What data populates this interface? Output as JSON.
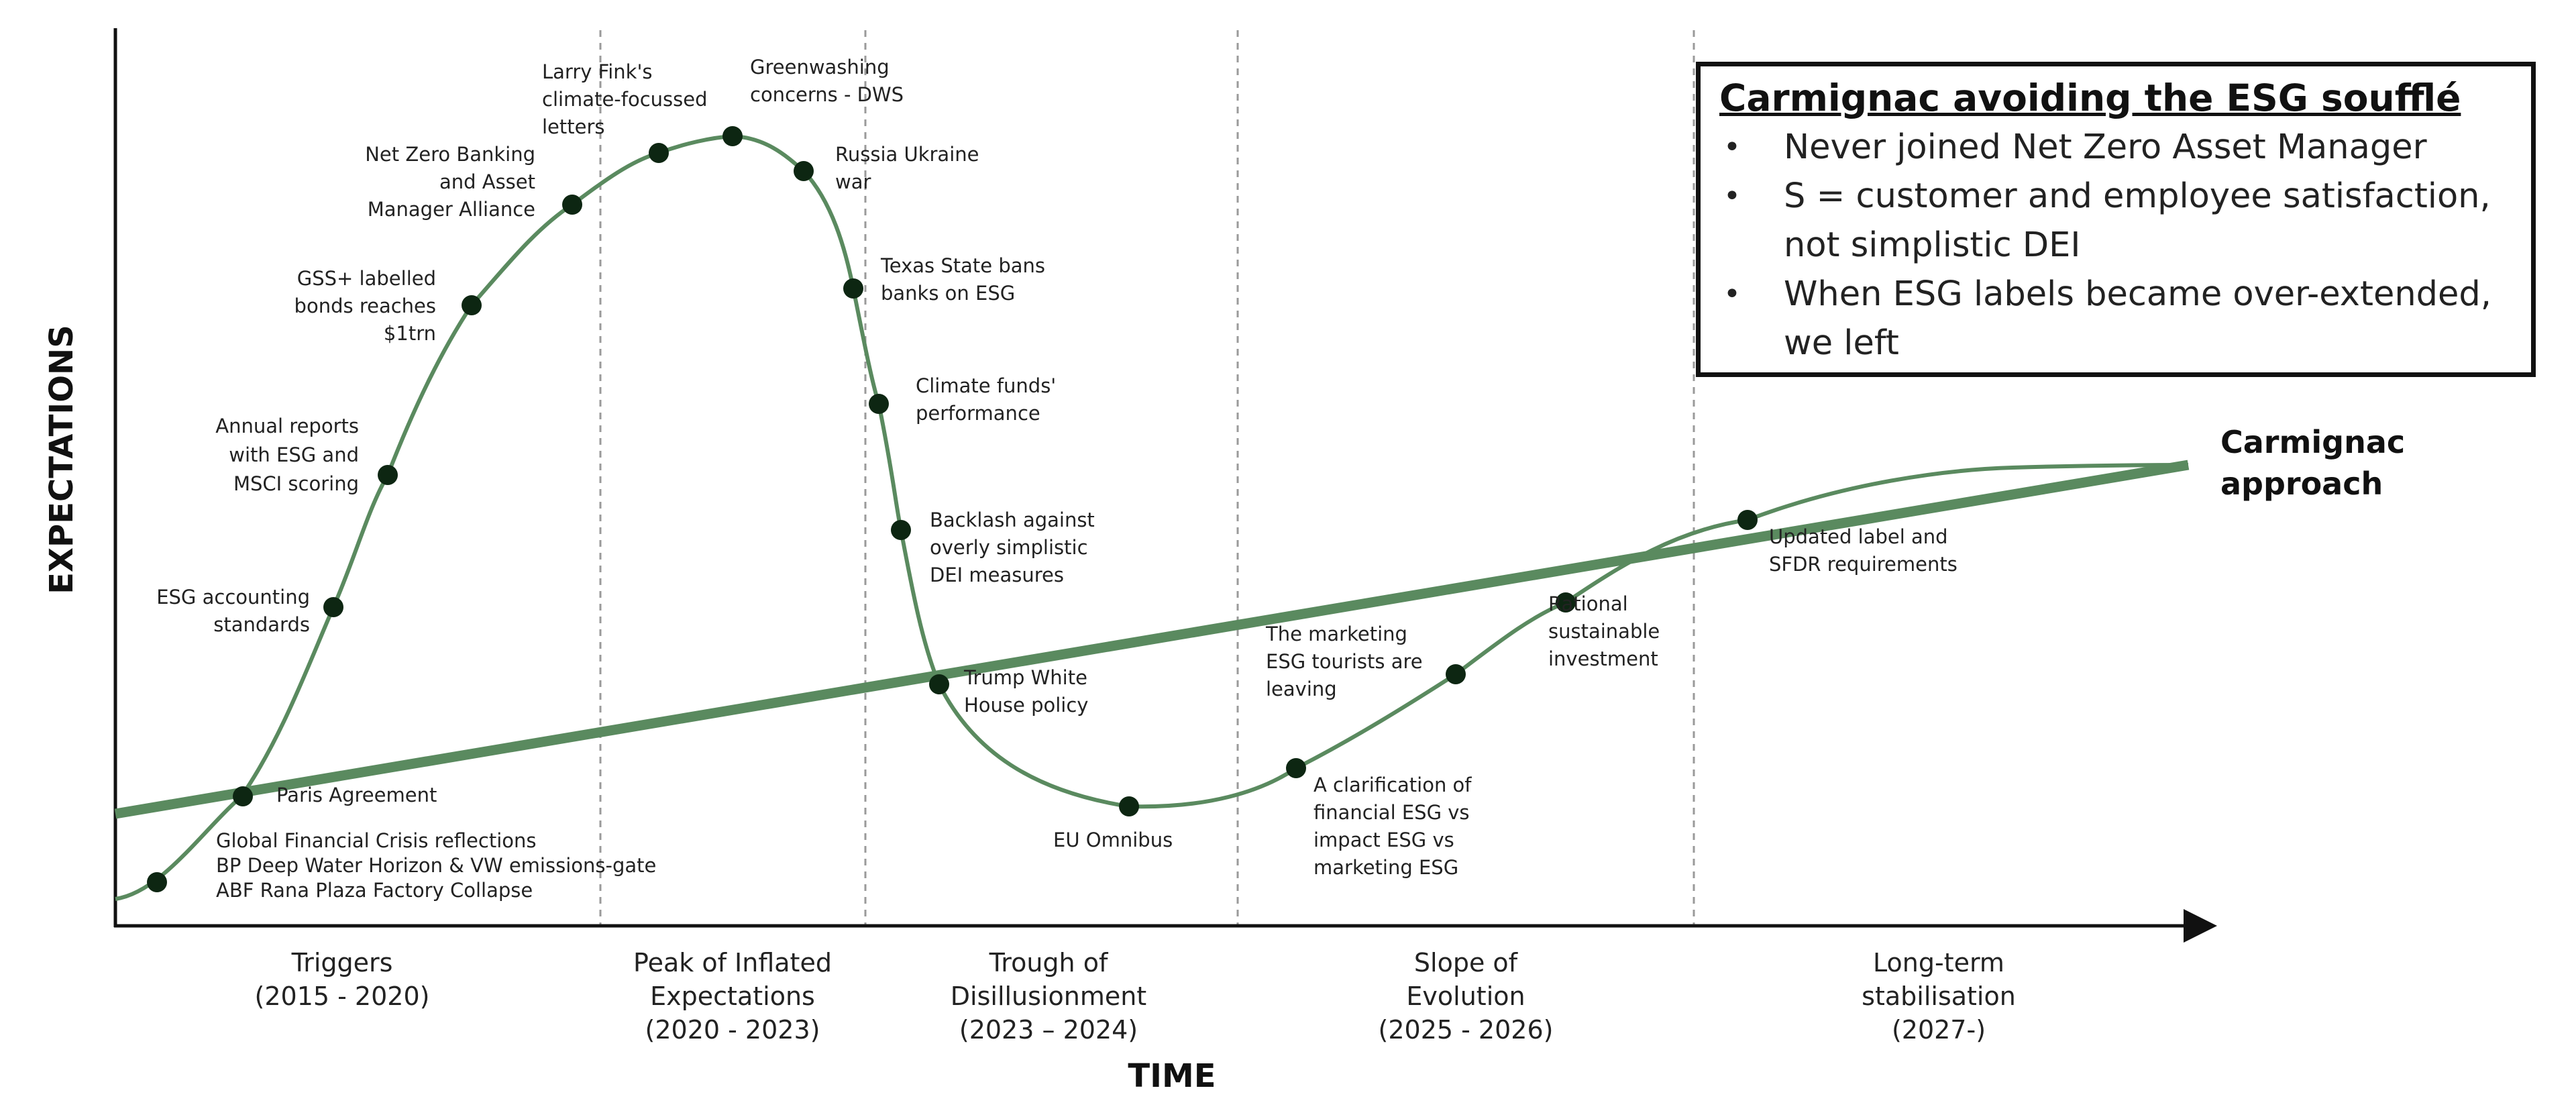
{
  "axes": {
    "y_label": "EXPECTATIONS",
    "x_label": "TIME"
  },
  "phases": [
    {
      "lines": [
        "Triggers",
        "(2015 - 2020)"
      ]
    },
    {
      "lines": [
        "Peak of Inflated",
        "Expectations",
        "(2020 - 2023)"
      ]
    },
    {
      "lines": [
        "Trough of",
        "Disillusionment",
        "(2023 – 2024)"
      ]
    },
    {
      "lines": [
        "Slope of",
        "Evolution",
        "(2025 - 2026)"
      ]
    },
    {
      "lines": [
        "Long-term",
        "stabilisation",
        "(2027-)"
      ]
    }
  ],
  "events": [
    {
      "lines": [
        "Global Financial Crisis reflections",
        "BP Deep Water Horizon & VW emissions-gate",
        "ABF Rana Plaza Factory Collapse"
      ]
    },
    {
      "lines": [
        "Paris Agreement"
      ]
    },
    {
      "lines": [
        "ESG accounting",
        "standards"
      ]
    },
    {
      "lines": [
        "Annual reports",
        "with ESG and",
        "MSCI scoring"
      ]
    },
    {
      "lines": [
        "GSS+ labelled",
        "bonds reaches",
        "$1trn"
      ]
    },
    {
      "lines": [
        "Net Zero Banking",
        "and Asset",
        "Manager Alliance"
      ]
    },
    {
      "lines": [
        "Larry Fink's",
        "climate-focussed",
        "letters"
      ]
    },
    {
      "lines": [
        "Greenwashing",
        "concerns - DWS"
      ]
    },
    {
      "lines": [
        "Russia Ukraine",
        "war"
      ]
    },
    {
      "lines": [
        "Texas State bans",
        "banks on ESG"
      ]
    },
    {
      "lines": [
        "Climate funds'",
        "performance"
      ]
    },
    {
      "lines": [
        "Backlash against",
        "overly simplistic",
        "DEI measures"
      ]
    },
    {
      "lines": [
        "Trump White",
        "House policy"
      ]
    },
    {
      "lines": [
        "EU Omnibus"
      ]
    },
    {
      "lines": [
        "A clarification of",
        "financial ESG vs",
        "impact ESG vs",
        "marketing ESG"
      ]
    },
    {
      "lines": [
        "The marketing",
        "ESG tourists are",
        "leaving"
      ]
    },
    {
      "lines": [
        "Rational",
        "sustainable",
        "investment"
      ]
    },
    {
      "lines": [
        "Updated label and",
        "SFDR requirements"
      ]
    }
  ],
  "approach_label": [
    "Carmignac",
    "approach"
  ],
  "callout": {
    "title": "Carmignac avoiding the ESG soufflé",
    "items": [
      "Never joined Net Zero Asset Manager",
      "S = customer and employee satisfaction, not simplistic DEI",
      "When ESG labels became over-extended, we left"
    ]
  },
  "colors": {
    "curve": "#5a8a5f",
    "approach_line": "#5a8a5f",
    "dot": "#0d2612",
    "divider": "#9a9a9a",
    "axis": "#111111"
  }
}
